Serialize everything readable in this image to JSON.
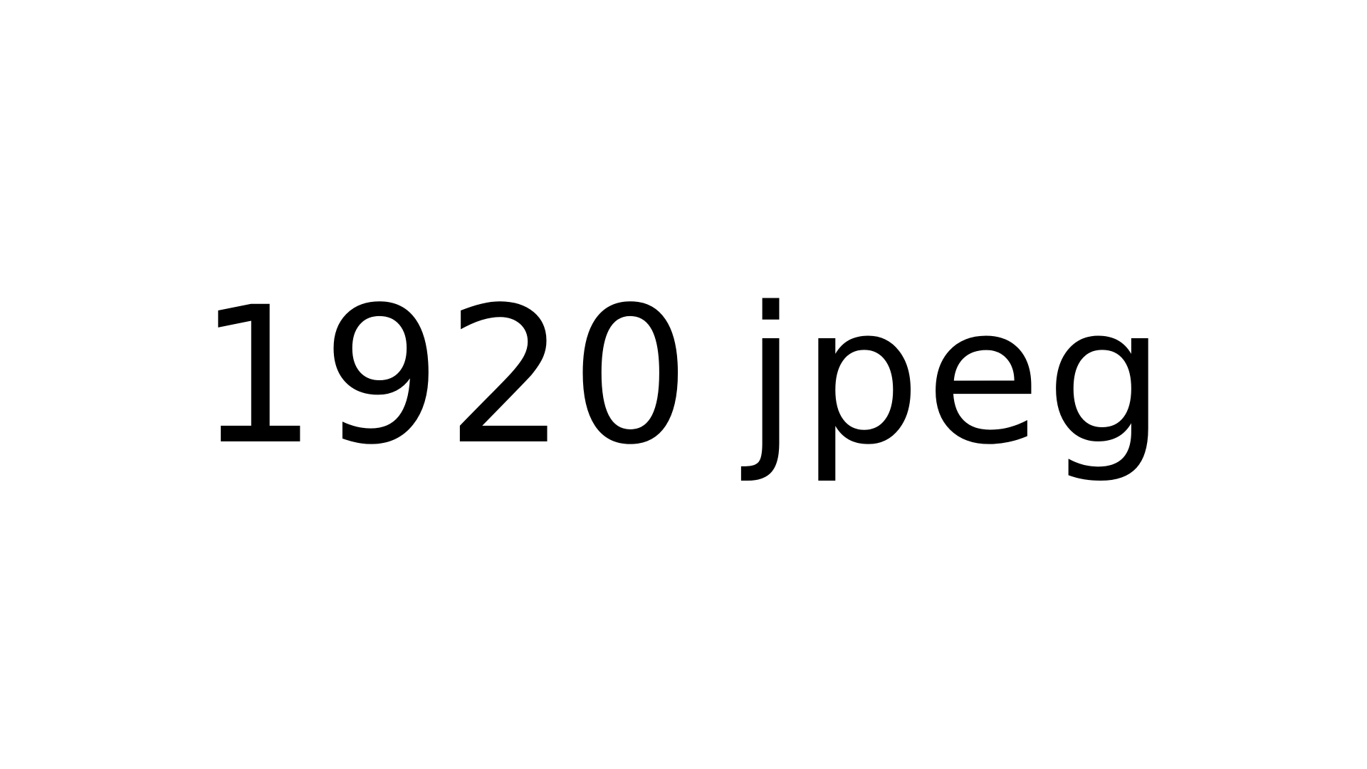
{
  "image": {
    "number": "1920",
    "format": "jpeg"
  },
  "colors": {
    "background": "#ffffff",
    "text": "#000000"
  }
}
